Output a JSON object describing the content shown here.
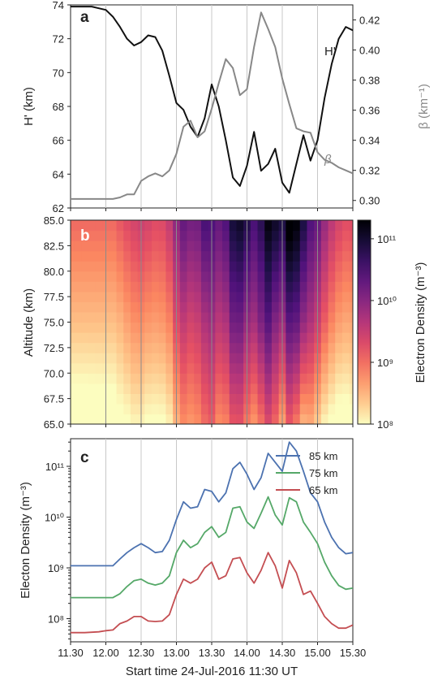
{
  "figure": {
    "xaxis_label": "Start time 24-Jul-2016 11:30 UT",
    "xtick_labels": [
      "11.30",
      "12.00",
      "12.30",
      "13.00",
      "13.30",
      "14.00",
      "14.30",
      "15.00",
      "15.30"
    ]
  },
  "chart_data": [
    {
      "panel": "a",
      "type": "line",
      "ylabel": "H' (km)",
      "ylabel_right": "β (km⁻¹)",
      "ylim": [
        62,
        74
      ],
      "ylim_right": [
        0.295,
        0.43
      ],
      "yticks": [
        "62",
        "64",
        "66",
        "68",
        "70",
        "72",
        "74"
      ],
      "yticks_right": [
        "0.30",
        "0.32",
        "0.34",
        "0.36",
        "0.38",
        "0.40",
        "0.42"
      ],
      "x": [
        0,
        0.1,
        0.2,
        0.3,
        0.4,
        0.5,
        0.6,
        0.7,
        0.8,
        0.9,
        1.0,
        1.1,
        1.2,
        1.3,
        1.4,
        1.5,
        1.6,
        1.7,
        1.8,
        1.9,
        2.0,
        2.1,
        2.2,
        2.3,
        2.4,
        2.5,
        2.6,
        2.7,
        2.8,
        2.9,
        3.0,
        3.1,
        3.2,
        3.3,
        3.4,
        3.5,
        3.6,
        3.7,
        3.8,
        3.9,
        4.0
      ],
      "series": [
        {
          "name": "H'",
          "color": "#111111",
          "values": [
            73.9,
            73.9,
            73.9,
            73.9,
            73.8,
            73.7,
            73.3,
            72.7,
            72.0,
            71.6,
            71.8,
            72.2,
            72.1,
            71.3,
            69.8,
            68.2,
            67.8,
            66.8,
            66.2,
            67.3,
            69.3,
            68.0,
            66.0,
            63.8,
            63.3,
            64.5,
            66.5,
            64.2,
            64.6,
            65.5,
            63.5,
            62.9,
            64.6,
            66.3,
            64.8,
            66.0,
            68.5,
            70.5,
            72.0,
            72.7,
            72.5
          ]
        },
        {
          "name": "β",
          "color": "#888888",
          "values": [
            0.301,
            0.301,
            0.301,
            0.301,
            0.301,
            0.301,
            0.301,
            0.302,
            0.304,
            0.304,
            0.313,
            0.316,
            0.318,
            0.316,
            0.32,
            0.331,
            0.349,
            0.353,
            0.342,
            0.346,
            0.361,
            0.378,
            0.394,
            0.388,
            0.37,
            0.374,
            0.402,
            0.425,
            0.414,
            0.402,
            0.381,
            0.364,
            0.348,
            0.346,
            0.345,
            0.332,
            0.327,
            0.325,
            0.322,
            0.32,
            0.318
          ]
        }
      ]
    },
    {
      "panel": "b",
      "type": "heatmap",
      "ylabel": "Altitude (km)",
      "ylim": [
        65,
        85
      ],
      "yticks": [
        "65.0",
        "67.5",
        "70.0",
        "72.5",
        "75.0",
        "77.5",
        "80.0",
        "82.5",
        "85.0"
      ],
      "colorbar_label": "Electron Density (m⁻³)",
      "colorbar_range": [
        100000000.0,
        200000000000.0
      ],
      "colorbar_scale": "log",
      "colorbar_ticks": [
        "10⁸",
        "10⁹",
        "10¹⁰",
        "10¹¹"
      ],
      "colormap": "magma",
      "note_values": "density at each time column equals panel c profiles interpolated in altitude"
    },
    {
      "panel": "c",
      "type": "line",
      "ylabel": "Electon Density (m⁻³)",
      "yscale": "log",
      "ylim": [
        35000000.0,
        350000000000.0
      ],
      "yticks": [
        "10⁸",
        "10⁹",
        "10¹⁰",
        "10¹¹"
      ],
      "legend_position": "top-right",
      "x": [
        0,
        0.1,
        0.2,
        0.3,
        0.4,
        0.5,
        0.6,
        0.7,
        0.8,
        0.9,
        1.0,
        1.1,
        1.2,
        1.3,
        1.4,
        1.5,
        1.6,
        1.7,
        1.8,
        1.9,
        2.0,
        2.1,
        2.2,
        2.3,
        2.4,
        2.5,
        2.6,
        2.7,
        2.8,
        2.9,
        3.0,
        3.1,
        3.2,
        3.3,
        3.4,
        3.5,
        3.6,
        3.7,
        3.8,
        3.9,
        4.0
      ],
      "series": [
        {
          "name": "85 km",
          "color": "#4c72b0",
          "values": [
            1100000000.0,
            1100000000.0,
            1100000000.0,
            1100000000.0,
            1100000000.0,
            1100000000.0,
            1100000000.0,
            1500000000.0,
            2000000000.0,
            2500000000.0,
            3000000000.0,
            2500000000.0,
            2000000000.0,
            2100000000.0,
            3500000000.0,
            9000000000.0,
            20000000000.0,
            15000000000.0,
            16000000000.0,
            35000000000.0,
            32000000000.0,
            20000000000.0,
            30000000000.0,
            90000000000.0,
            120000000000.0,
            70000000000.0,
            35000000000.0,
            60000000000.0,
            180000000000.0,
            120000000000.0,
            80000000000.0,
            300000000000.0,
            200000000000.0,
            80000000000.0,
            30000000000.0,
            20000000000.0,
            8000000000.0,
            4000000000.0,
            2500000000.0,
            1900000000.0,
            2000000000.0
          ]
        },
        {
          "name": "75 km",
          "color": "#55a868",
          "values": [
            260000000.0,
            260000000.0,
            260000000.0,
            260000000.0,
            260000000.0,
            260000000.0,
            260000000.0,
            310000000.0,
            430000000.0,
            560000000.0,
            600000000.0,
            500000000.0,
            460000000.0,
            500000000.0,
            700000000.0,
            2000000000.0,
            3500000000.0,
            2500000000.0,
            3000000000.0,
            5000000000.0,
            6500000000.0,
            4000000000.0,
            5000000000.0,
            15000000000.0,
            16000000000.0,
            8000000000.0,
            6000000000.0,
            12000000000.0,
            25000000000.0,
            11000000000.0,
            7000000000.0,
            24000000000.0,
            20000000000.0,
            8000000000.0,
            5000000000.0,
            3000000000.0,
            1300000000.0,
            700000000.0,
            450000000.0,
            380000000.0,
            400000000.0
          ]
        },
        {
          "name": "65 km",
          "color": "#c44e52",
          "values": [
            53000000.0,
            53000000.0,
            53000000.0,
            54000000.0,
            55000000.0,
            58000000.0,
            60000000.0,
            80000000.0,
            90000000.0,
            110000000.0,
            110000000.0,
            90000000.0,
            88000000.0,
            90000000.0,
            120000000.0,
            300000000.0,
            600000000.0,
            500000000.0,
            600000000.0,
            1000000000.0,
            1300000000.0,
            600000000.0,
            700000000.0,
            1500000000.0,
            1600000000.0,
            800000000.0,
            500000000.0,
            900000000.0,
            2000000000.0,
            1100000000.0,
            400000000.0,
            1400000000.0,
            800000000.0,
            300000000.0,
            350000000.0,
            200000000.0,
            110000000.0,
            80000000.0,
            65000000.0,
            65000000.0,
            75000000.0
          ]
        }
      ]
    }
  ]
}
